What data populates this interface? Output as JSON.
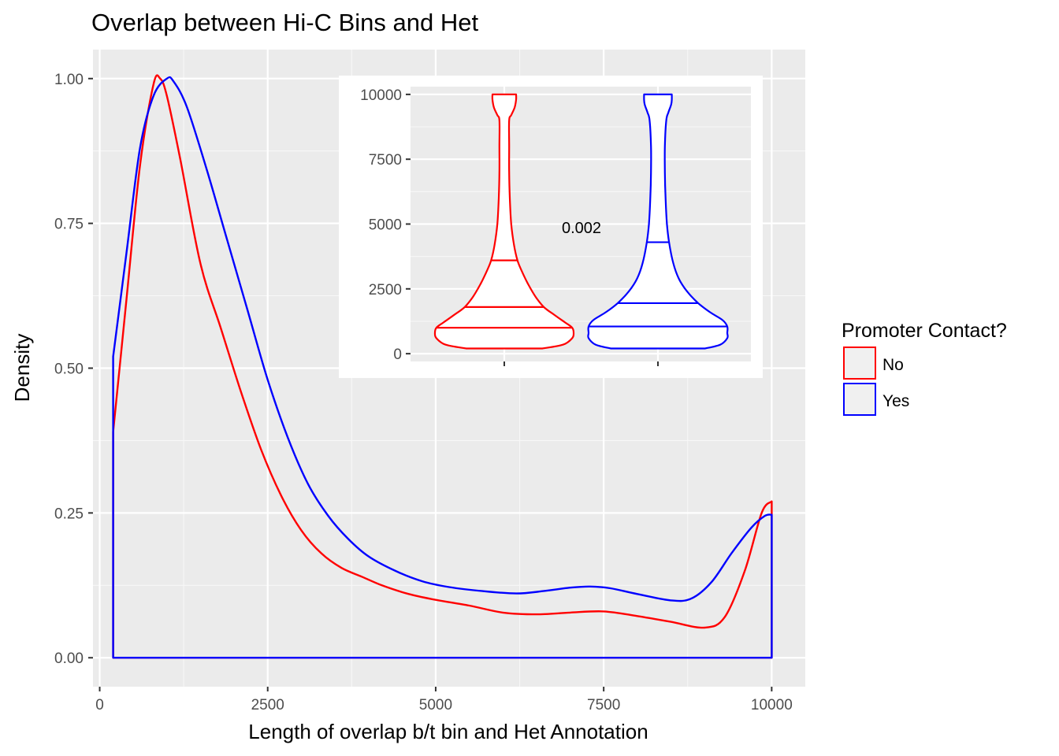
{
  "chart_data": [
    {
      "type": "area",
      "title": "Overlap between Hi-C Bins and Het",
      "xlabel": "Length of overlap b/t bin and Het Annotation",
      "ylabel": "Density",
      "xlim": [
        -100,
        10500
      ],
      "ylim": [
        -0.05,
        1.05
      ],
      "x_ticks": [
        0,
        2500,
        5000,
        7500,
        10000
      ],
      "x_tick_labels": [
        "0",
        "2500",
        "5000",
        "7500",
        "10000"
      ],
      "y_ticks": [
        0,
        0.25,
        0.5,
        0.75,
        1.0
      ],
      "y_tick_labels": [
        "0.00",
        "0.25",
        "0.50",
        "0.75",
        "1.00"
      ],
      "grid": true,
      "legend": {
        "title": "Promoter Contact?",
        "position": "right",
        "entries": [
          "No",
          "Yes"
        ]
      },
      "series": [
        {
          "name": "No",
          "color": "#ff0000",
          "x": [
            200,
            400,
            600,
            800,
            900,
            1000,
            1200,
            1500,
            1800,
            2100,
            2400,
            2700,
            3000,
            3300,
            3600,
            3900,
            4200,
            4600,
            5000,
            5500,
            6000,
            6500,
            7000,
            7500,
            8000,
            8500,
            9000,
            9300,
            9600,
            9850,
            10000
          ],
          "y": [
            0.39,
            0.62,
            0.85,
            0.99,
            1.0,
            0.97,
            0.86,
            0.68,
            0.57,
            0.46,
            0.36,
            0.28,
            0.22,
            0.18,
            0.155,
            0.14,
            0.125,
            0.11,
            0.1,
            0.09,
            0.078,
            0.075,
            0.078,
            0.08,
            0.072,
            0.062,
            0.052,
            0.07,
            0.15,
            0.25,
            0.27
          ]
        },
        {
          "name": "Yes",
          "color": "#0000ff",
          "x": [
            200,
            400,
            600,
            800,
            1000,
            1100,
            1300,
            1600,
            1900,
            2200,
            2500,
            2800,
            3100,
            3400,
            3700,
            4000,
            4400,
            4800,
            5200,
            5700,
            6200,
            6600,
            7000,
            7300,
            7600,
            8000,
            8500,
            8800,
            9100,
            9400,
            9700,
            9900,
            10000
          ],
          "y": [
            0.52,
            0.7,
            0.88,
            0.97,
            1.0,
            0.995,
            0.95,
            0.84,
            0.72,
            0.6,
            0.48,
            0.38,
            0.3,
            0.245,
            0.205,
            0.175,
            0.15,
            0.132,
            0.122,
            0.115,
            0.111,
            0.115,
            0.121,
            0.123,
            0.12,
            0.11,
            0.099,
            0.102,
            0.13,
            0.18,
            0.225,
            0.245,
            0.247
          ]
        }
      ]
    },
    {
      "type": "violin",
      "inset": true,
      "ylim": [
        -300,
        10300
      ],
      "y_ticks": [
        0,
        2500,
        5000,
        7500,
        10000
      ],
      "y_tick_labels": [
        "0",
        "2500",
        "5000",
        "7500",
        "10000"
      ],
      "annotation": "0.002",
      "grid": true,
      "violins": [
        {
          "name": "No",
          "color": "#ff0000",
          "quantiles": [
            1000,
            1800,
            3600
          ],
          "profile_y": [
            200,
            350,
            600,
            800,
            1000,
            1200,
            1500,
            1800,
            2200,
            2700,
            3200,
            3600,
            4200,
            5000,
            6000,
            7000,
            8000,
            9000,
            9200,
            9500,
            9800,
            10000
          ],
          "profile_w": [
            0.55,
            0.85,
            0.98,
            1.0,
            0.98,
            0.88,
            0.72,
            0.57,
            0.45,
            0.34,
            0.25,
            0.19,
            0.14,
            0.1,
            0.08,
            0.07,
            0.07,
            0.07,
            0.1,
            0.15,
            0.17,
            0.17
          ]
        },
        {
          "name": "Yes",
          "color": "#0000ff",
          "quantiles": [
            1050,
            1950,
            4300
          ],
          "profile_y": [
            200,
            350,
            600,
            800,
            1050,
            1300,
            1600,
            1950,
            2400,
            2900,
            3500,
            4300,
            5000,
            6000,
            7000,
            8000,
            9000,
            9300,
            9600,
            9800,
            10000
          ],
          "profile_w": [
            0.68,
            0.9,
            1.0,
            1.0,
            1.0,
            0.93,
            0.75,
            0.58,
            0.42,
            0.3,
            0.22,
            0.16,
            0.13,
            0.11,
            0.1,
            0.1,
            0.12,
            0.15,
            0.19,
            0.2,
            0.2
          ]
        }
      ]
    }
  ]
}
